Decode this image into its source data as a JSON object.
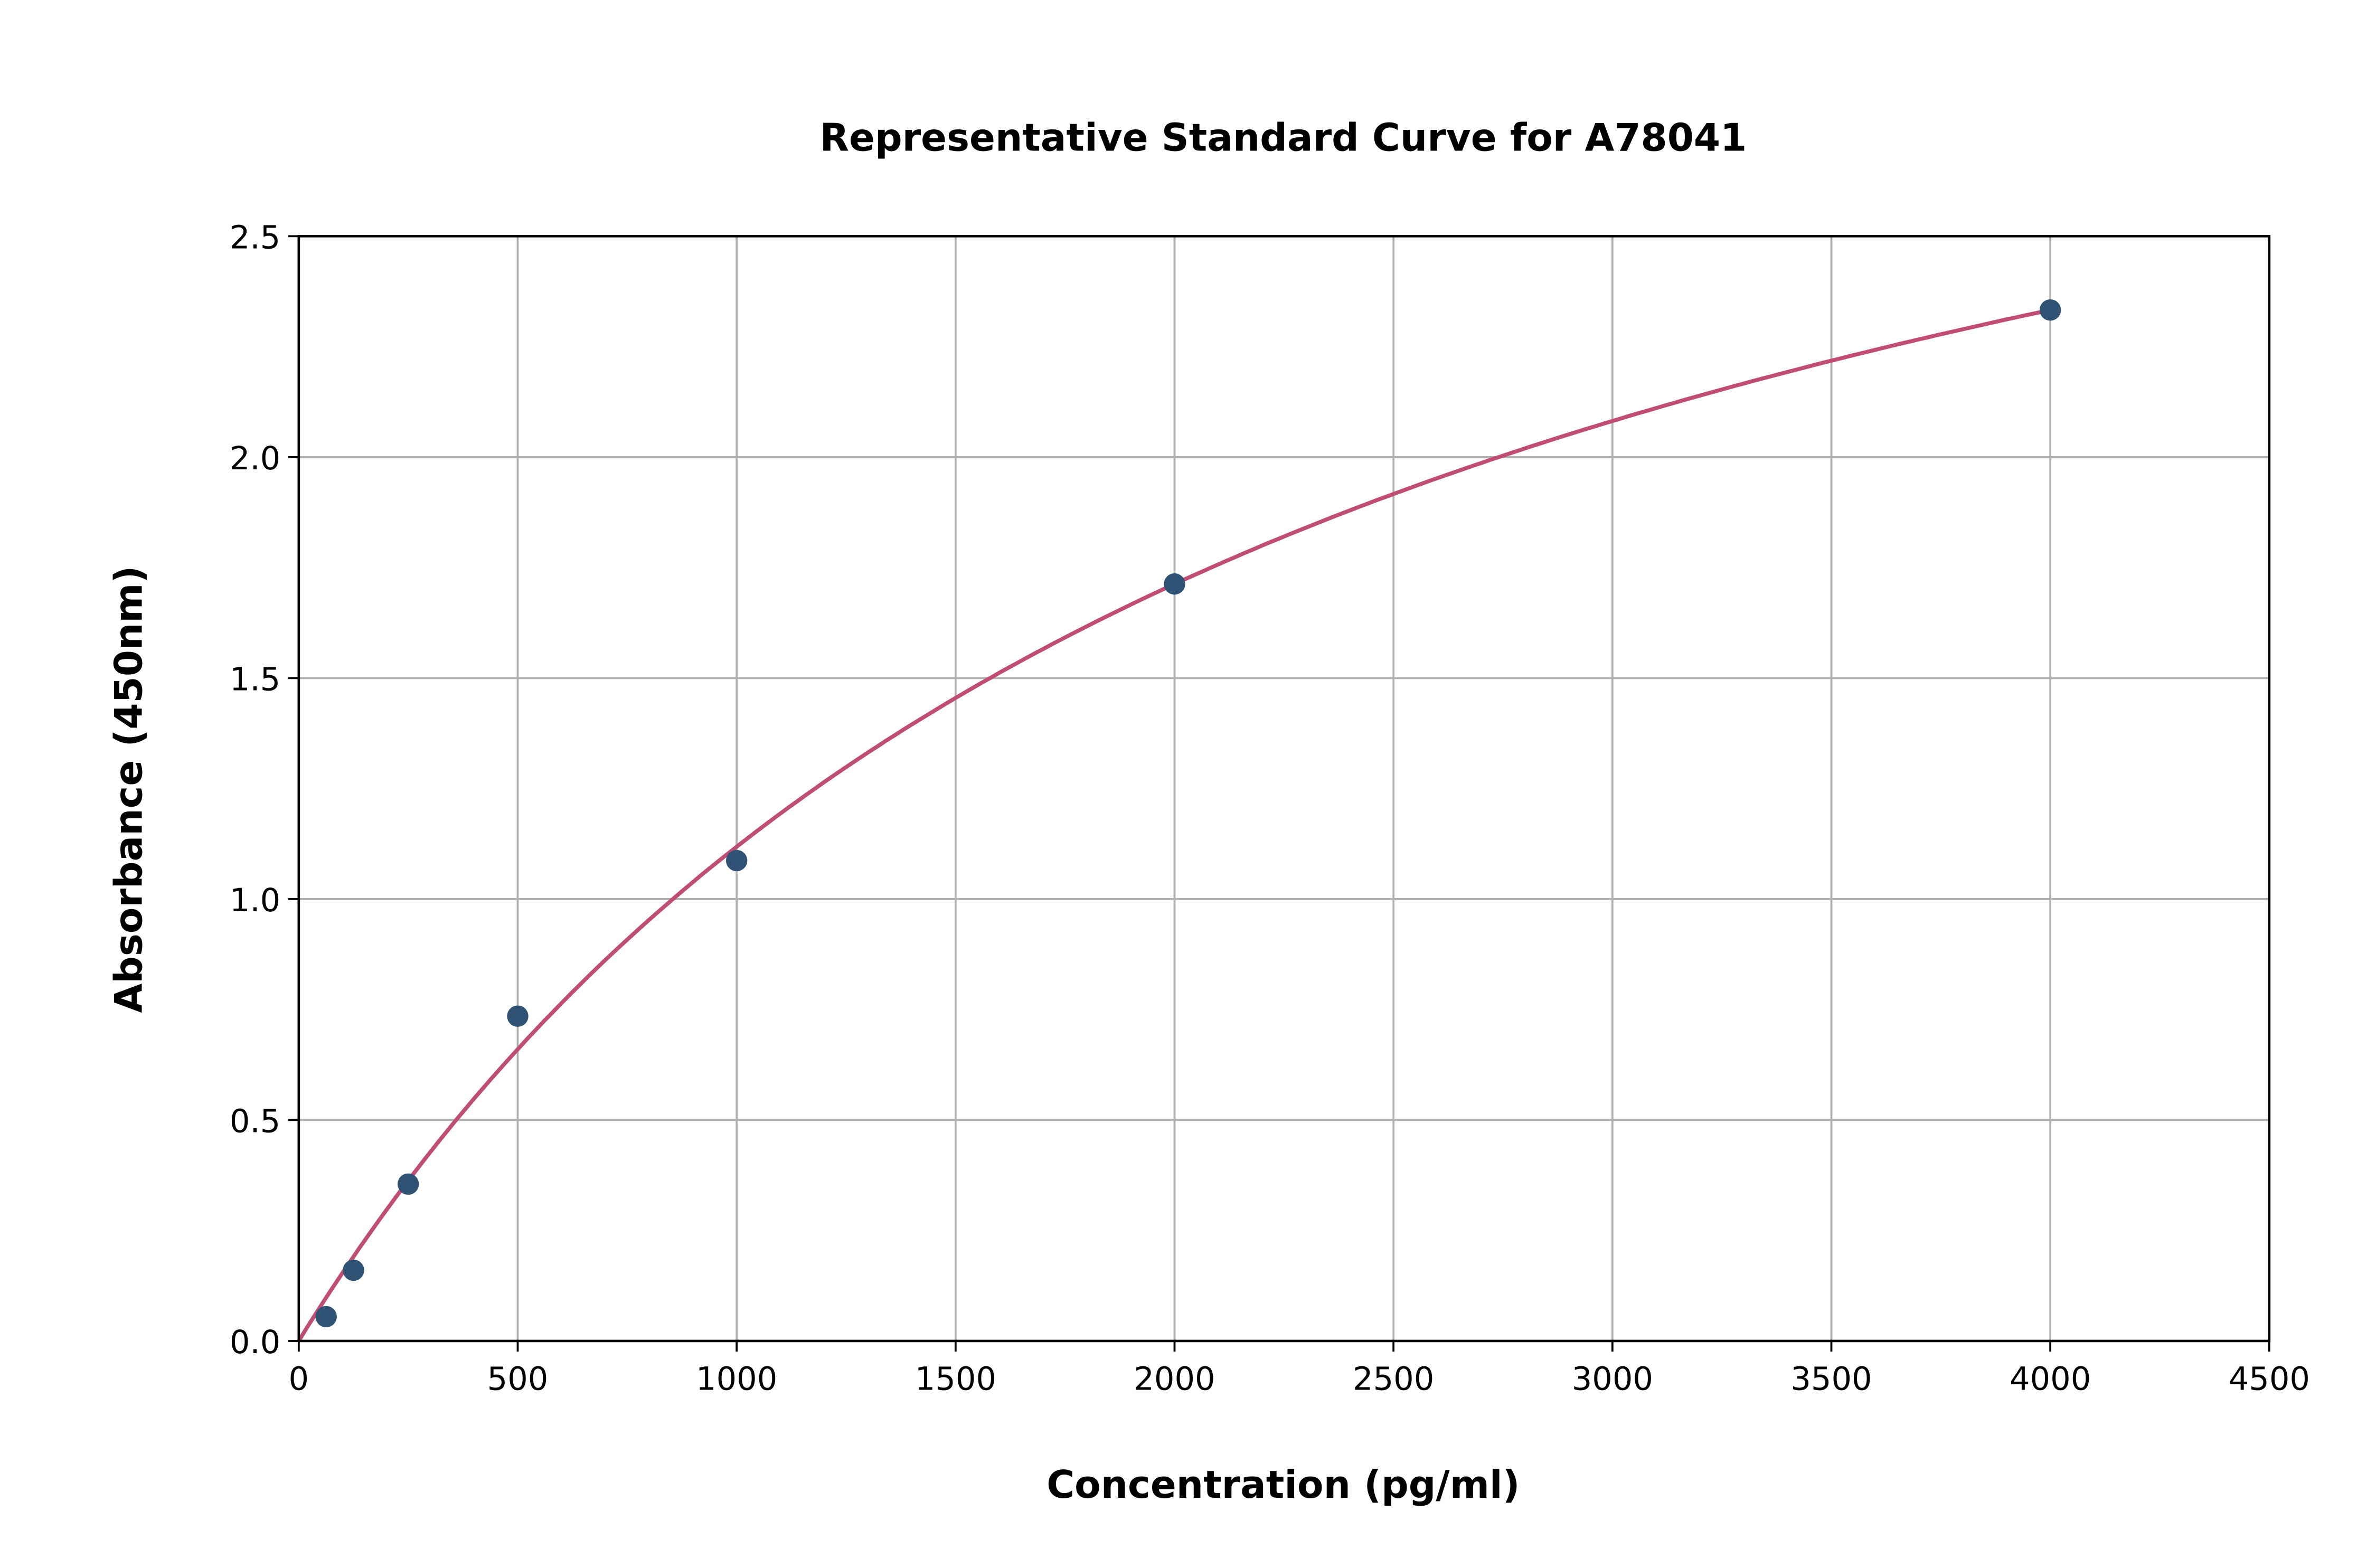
{
  "chart_data": {
    "type": "scatter",
    "title": "Representative Standard Curve for A78041",
    "xlabel": "Concentration (pg/ml)",
    "ylabel": "Absorbance (450nm)",
    "xlim": [
      0,
      4500
    ],
    "ylim": [
      0,
      2.5
    ],
    "grid": true,
    "xticks": [
      "0",
      "500",
      "1000",
      "1500",
      "2000",
      "2500",
      "3000",
      "3500",
      "4000",
      "4500"
    ],
    "yticks": [
      "0.0",
      "0.5",
      "1.0",
      "1.5",
      "2.0",
      "2.5"
    ],
    "points": {
      "x": [
        62.5,
        125,
        250,
        500,
        1000,
        2000,
        4000
      ],
      "y": [
        0.055,
        0.16,
        0.355,
        0.735,
        1.087,
        1.713,
        2.333
      ]
    },
    "colors": {
      "points": "#2f5275",
      "curve": "#c04d72",
      "grid": "#b0b0b0"
    }
  }
}
